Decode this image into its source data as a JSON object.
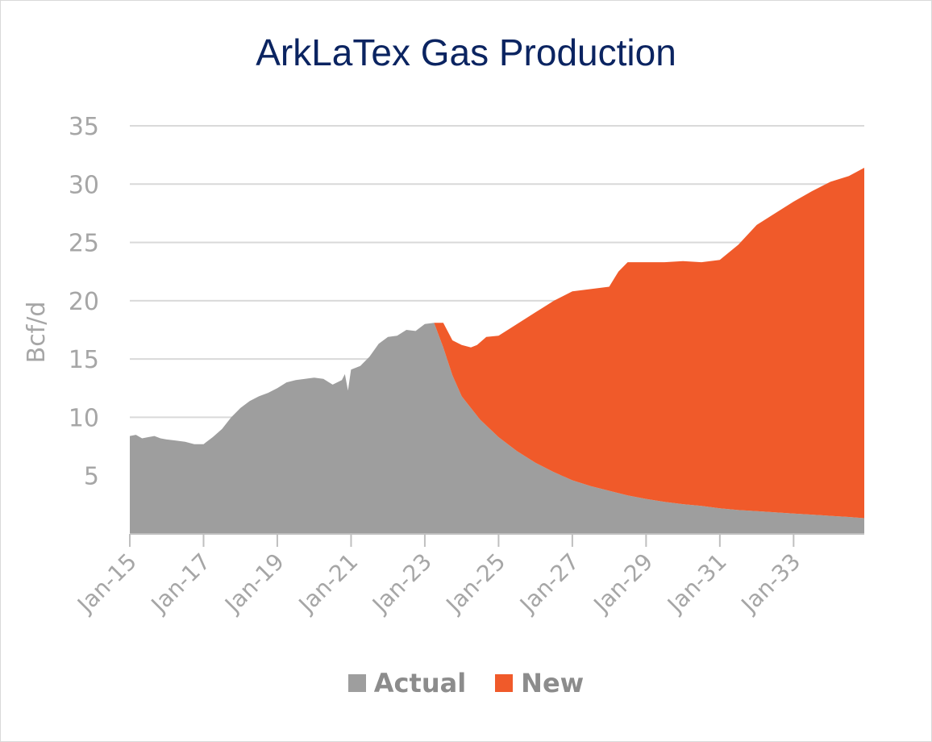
{
  "chart_data": {
    "type": "area",
    "stacked": true,
    "title": "ArkLaTex Gas Production",
    "ylabel": "Bcf/d",
    "xlabel": "",
    "ylim": [
      0,
      35
    ],
    "xlim": [
      "Jan-15",
      "Dec-34"
    ],
    "yticks": [
      5,
      10,
      15,
      20,
      25,
      30,
      35
    ],
    "xticks": [
      "Jan-15",
      "Jan-17",
      "Jan-19",
      "Jan-21",
      "Jan-23",
      "Jan-25",
      "Jan-27",
      "Jan-29",
      "Jan-31",
      "Jan-33"
    ],
    "grid": "horizontal",
    "legend_position": "bottom",
    "x_unit": "month",
    "series": [
      {
        "name": "Actual",
        "color": "#9e9e9e",
        "points": [
          [
            "Jan-15",
            8.4
          ],
          [
            "Mar-15",
            8.5
          ],
          [
            "May-15",
            8.2
          ],
          [
            "Jul-15",
            8.3
          ],
          [
            "Sep-15",
            8.4
          ],
          [
            "Nov-15",
            8.2
          ],
          [
            "Jan-16",
            8.1
          ],
          [
            "Apr-16",
            8.0
          ],
          [
            "Jul-16",
            7.9
          ],
          [
            "Oct-16",
            7.7
          ],
          [
            "Jan-17",
            7.7
          ],
          [
            "Apr-17",
            8.3
          ],
          [
            "Jul-17",
            9.0
          ],
          [
            "Oct-17",
            10.0
          ],
          [
            "Jan-18",
            10.8
          ],
          [
            "Apr-18",
            11.4
          ],
          [
            "Jul-18",
            11.8
          ],
          [
            "Oct-18",
            12.1
          ],
          [
            "Jan-19",
            12.5
          ],
          [
            "Apr-19",
            13.0
          ],
          [
            "Jul-19",
            13.2
          ],
          [
            "Oct-19",
            13.3
          ],
          [
            "Jan-20",
            13.4
          ],
          [
            "Apr-20",
            13.3
          ],
          [
            "Jul-20",
            12.8
          ],
          [
            "Oct-20",
            13.2
          ],
          [
            "Nov-20",
            13.7
          ],
          [
            "Dec-20",
            12.3
          ],
          [
            "Jan-21",
            14.1
          ],
          [
            "Apr-21",
            14.4
          ],
          [
            "Jul-21",
            15.2
          ],
          [
            "Oct-21",
            16.3
          ],
          [
            "Jan-22",
            16.9
          ],
          [
            "Apr-22",
            17.0
          ],
          [
            "Jul-22",
            17.5
          ],
          [
            "Oct-22",
            17.4
          ],
          [
            "Jan-23",
            18.0
          ],
          [
            "Apr-23",
            18.1
          ],
          [
            "Jul-23",
            16.0
          ],
          [
            "Oct-23",
            13.6
          ],
          [
            "Jan-24",
            11.8
          ],
          [
            "Jul-24",
            9.8
          ],
          [
            "Jan-25",
            8.3
          ],
          [
            "Jul-25",
            7.1
          ],
          [
            "Jan-26",
            6.1
          ],
          [
            "Jul-26",
            5.3
          ],
          [
            "Jan-27",
            4.6
          ],
          [
            "Jul-27",
            4.1
          ],
          [
            "Jan-28",
            3.7
          ],
          [
            "Jul-28",
            3.3
          ],
          [
            "Jan-29",
            3.0
          ],
          [
            "Jul-29",
            2.75
          ],
          [
            "Jan-30",
            2.55
          ],
          [
            "Jul-30",
            2.4
          ],
          [
            "Jan-31",
            2.2
          ],
          [
            "Jul-31",
            2.05
          ],
          [
            "Jan-32",
            1.95
          ],
          [
            "Jul-32",
            1.85
          ],
          [
            "Jan-33",
            1.75
          ],
          [
            "Jul-33",
            1.65
          ],
          [
            "Jan-34",
            1.55
          ],
          [
            "Jul-34",
            1.45
          ],
          [
            "Dec-34",
            1.35
          ]
        ]
      },
      {
        "name": "New",
        "color": "#f05a2a",
        "total_points": [
          [
            "Apr-23",
            18.1
          ],
          [
            "Jul-23",
            18.1
          ],
          [
            "Oct-23",
            16.6
          ],
          [
            "Jan-24",
            16.2
          ],
          [
            "Apr-24",
            16.0
          ],
          [
            "Jun-24",
            16.2
          ],
          [
            "Sep-24",
            16.9
          ],
          [
            "Jan-25",
            17.0
          ],
          [
            "Jul-25",
            18.0
          ],
          [
            "Jan-26",
            19.0
          ],
          [
            "Jul-26",
            20.0
          ],
          [
            "Jan-27",
            20.8
          ],
          [
            "Jul-27",
            21.0
          ],
          [
            "Jan-28",
            21.2
          ],
          [
            "Apr-28",
            22.5
          ],
          [
            "Jul-28",
            23.3
          ],
          [
            "Jan-29",
            23.3
          ],
          [
            "Jul-29",
            23.3
          ],
          [
            "Jan-30",
            23.4
          ],
          [
            "Jul-30",
            23.3
          ],
          [
            "Jan-31",
            23.5
          ],
          [
            "Jul-31",
            24.8
          ],
          [
            "Jan-32",
            26.5
          ],
          [
            "Jul-32",
            27.5
          ],
          [
            "Jan-33",
            28.5
          ],
          [
            "Jul-33",
            29.4
          ],
          [
            "Jan-34",
            30.2
          ],
          [
            "Jul-34",
            30.7
          ],
          [
            "Dec-34",
            31.4
          ]
        ]
      }
    ]
  }
}
